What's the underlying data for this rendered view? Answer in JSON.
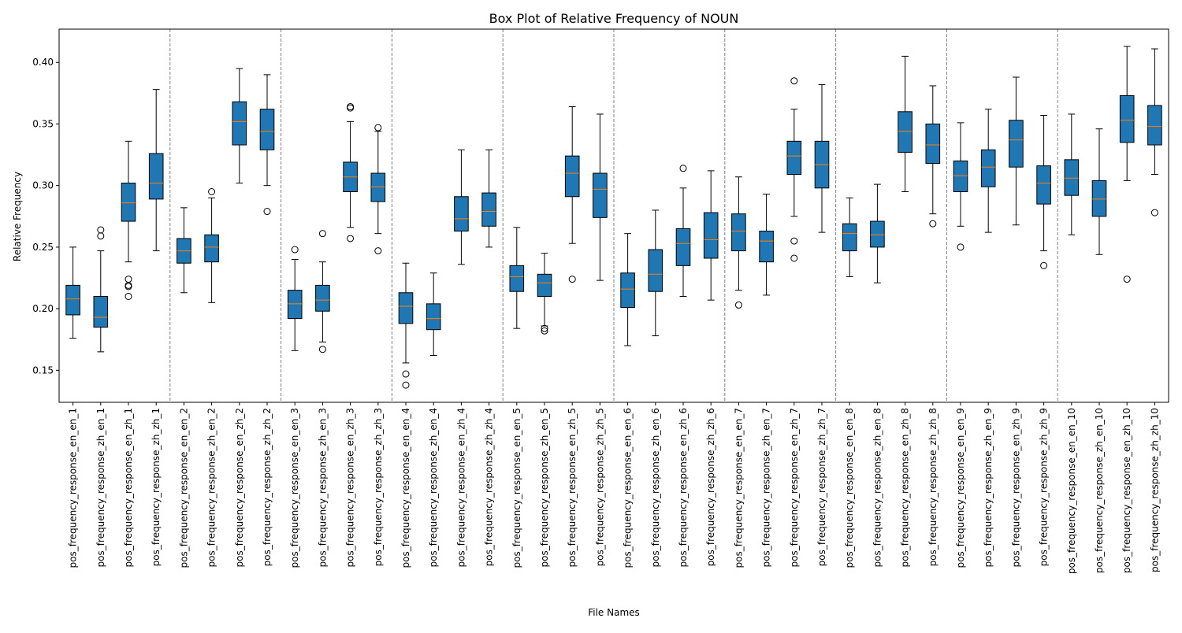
{
  "chart_data": {
    "type": "box",
    "title": "Box Plot of Relative Frequency of NOUN",
    "xlabel": "File Names",
    "ylabel": "Relative Frequency",
    "ylim": [
      0.124,
      0.427
    ],
    "yticks": [
      0.15,
      0.2,
      0.25,
      0.3,
      0.35,
      0.4
    ],
    "ytick_labels": [
      "0.15",
      "0.20",
      "0.25",
      "0.30",
      "0.35",
      "0.40"
    ],
    "grid": false,
    "group_separators": true,
    "colors": {
      "box_fill": "#1f77b4",
      "median": "#ff7f0e",
      "whisker": "#000000",
      "separator": "#808080"
    },
    "categories": [
      "pos_frequency_response_en_en_1",
      "pos_frequency_response_zh_en_1",
      "pos_frequency_response_en_zh_1",
      "pos_frequency_response_zh_zh_1",
      "pos_frequency_response_en_en_2",
      "pos_frequency_response_zh_en_2",
      "pos_frequency_response_en_zh_2",
      "pos_frequency_response_zh_zh_2",
      "pos_frequency_response_en_en_3",
      "pos_frequency_response_zh_en_3",
      "pos_frequency_response_en_zh_3",
      "pos_frequency_response_zh_zh_3",
      "pos_frequency_response_en_en_4",
      "pos_frequency_response_zh_en_4",
      "pos_frequency_response_en_zh_4",
      "pos_frequency_response_zh_zh_4",
      "pos_frequency_response_en_en_5",
      "pos_frequency_response_zh_en_5",
      "pos_frequency_response_en_zh_5",
      "pos_frequency_response_zh_zh_5",
      "pos_frequency_response_en_en_6",
      "pos_frequency_response_zh_en_6",
      "pos_frequency_response_en_zh_6",
      "pos_frequency_response_zh_zh_6",
      "pos_frequency_response_en_en_7",
      "pos_frequency_response_zh_en_7",
      "pos_frequency_response_en_zh_7",
      "pos_frequency_response_zh_zh_7",
      "pos_frequency_response_en_en_8",
      "pos_frequency_response_zh_en_8",
      "pos_frequency_response_en_zh_8",
      "pos_frequency_response_zh_zh_8",
      "pos_frequency_response_en_en_9",
      "pos_frequency_response_zh_en_9",
      "pos_frequency_response_en_zh_9",
      "pos_frequency_response_zh_zh_9",
      "pos_frequency_response_en_en_10",
      "pos_frequency_response_zh_en_10",
      "pos_frequency_response_en_zh_10",
      "pos_frequency_response_zh_zh_10"
    ],
    "boxes": [
      {
        "whislo": 0.176,
        "q1": 0.195,
        "med": 0.208,
        "q3": 0.219,
        "whishi": 0.25,
        "fliers": []
      },
      {
        "whislo": 0.165,
        "q1": 0.185,
        "med": 0.193,
        "q3": 0.21,
        "whishi": 0.247,
        "fliers": [
          0.259,
          0.264
        ]
      },
      {
        "whislo": 0.238,
        "q1": 0.271,
        "med": 0.286,
        "q3": 0.302,
        "whishi": 0.336,
        "fliers": [
          0.21,
          0.218,
          0.219,
          0.224
        ]
      },
      {
        "whislo": 0.247,
        "q1": 0.289,
        "med": 0.302,
        "q3": 0.326,
        "whishi": 0.378,
        "fliers": []
      },
      {
        "whislo": 0.213,
        "q1": 0.237,
        "med": 0.247,
        "q3": 0.257,
        "whishi": 0.282,
        "fliers": []
      },
      {
        "whislo": 0.205,
        "q1": 0.238,
        "med": 0.25,
        "q3": 0.26,
        "whishi": 0.29,
        "fliers": [
          0.295
        ]
      },
      {
        "whislo": 0.302,
        "q1": 0.333,
        "med": 0.352,
        "q3": 0.368,
        "whishi": 0.395,
        "fliers": []
      },
      {
        "whislo": 0.3,
        "q1": 0.329,
        "med": 0.344,
        "q3": 0.362,
        "whishi": 0.39,
        "fliers": [
          0.279
        ]
      },
      {
        "whislo": 0.166,
        "q1": 0.192,
        "med": 0.204,
        "q3": 0.215,
        "whishi": 0.24,
        "fliers": [
          0.248
        ]
      },
      {
        "whislo": 0.173,
        "q1": 0.198,
        "med": 0.207,
        "q3": 0.219,
        "whishi": 0.238,
        "fliers": [
          0.167,
          0.261
        ]
      },
      {
        "whislo": 0.266,
        "q1": 0.295,
        "med": 0.307,
        "q3": 0.319,
        "whishi": 0.352,
        "fliers": [
          0.257,
          0.363,
          0.364
        ]
      },
      {
        "whislo": 0.261,
        "q1": 0.287,
        "med": 0.299,
        "q3": 0.31,
        "whishi": 0.344,
        "fliers": [
          0.247,
          0.347
        ]
      },
      {
        "whislo": 0.156,
        "q1": 0.188,
        "med": 0.202,
        "q3": 0.213,
        "whishi": 0.237,
        "fliers": [
          0.138,
          0.147
        ]
      },
      {
        "whislo": 0.162,
        "q1": 0.183,
        "med": 0.192,
        "q3": 0.204,
        "whishi": 0.229,
        "fliers": []
      },
      {
        "whislo": 0.236,
        "q1": 0.263,
        "med": 0.273,
        "q3": 0.291,
        "whishi": 0.329,
        "fliers": []
      },
      {
        "whislo": 0.25,
        "q1": 0.267,
        "med": 0.279,
        "q3": 0.294,
        "whishi": 0.329,
        "fliers": []
      },
      {
        "whislo": 0.184,
        "q1": 0.214,
        "med": 0.226,
        "q3": 0.235,
        "whishi": 0.266,
        "fliers": []
      },
      {
        "whislo": 0.186,
        "q1": 0.21,
        "med": 0.221,
        "q3": 0.228,
        "whishi": 0.245,
        "fliers": [
          0.182,
          0.184
        ]
      },
      {
        "whislo": 0.253,
        "q1": 0.291,
        "med": 0.31,
        "q3": 0.324,
        "whishi": 0.364,
        "fliers": [
          0.224
        ]
      },
      {
        "whislo": 0.223,
        "q1": 0.274,
        "med": 0.297,
        "q3": 0.31,
        "whishi": 0.358,
        "fliers": []
      },
      {
        "whislo": 0.17,
        "q1": 0.201,
        "med": 0.216,
        "q3": 0.229,
        "whishi": 0.261,
        "fliers": []
      },
      {
        "whislo": 0.178,
        "q1": 0.214,
        "med": 0.228,
        "q3": 0.248,
        "whishi": 0.28,
        "fliers": []
      },
      {
        "whislo": 0.21,
        "q1": 0.235,
        "med": 0.253,
        "q3": 0.265,
        "whishi": 0.298,
        "fliers": [
          0.314
        ]
      },
      {
        "whislo": 0.207,
        "q1": 0.241,
        "med": 0.256,
        "q3": 0.278,
        "whishi": 0.312,
        "fliers": []
      },
      {
        "whislo": 0.215,
        "q1": 0.247,
        "med": 0.263,
        "q3": 0.277,
        "whishi": 0.307,
        "fliers": [
          0.203
        ]
      },
      {
        "whislo": 0.211,
        "q1": 0.238,
        "med": 0.255,
        "q3": 0.263,
        "whishi": 0.293,
        "fliers": []
      },
      {
        "whislo": 0.275,
        "q1": 0.309,
        "med": 0.324,
        "q3": 0.336,
        "whishi": 0.362,
        "fliers": [
          0.241,
          0.255,
          0.385
        ]
      },
      {
        "whislo": 0.262,
        "q1": 0.298,
        "med": 0.317,
        "q3": 0.336,
        "whishi": 0.382,
        "fliers": []
      },
      {
        "whislo": 0.226,
        "q1": 0.247,
        "med": 0.261,
        "q3": 0.269,
        "whishi": 0.29,
        "fliers": []
      },
      {
        "whislo": 0.221,
        "q1": 0.25,
        "med": 0.26,
        "q3": 0.271,
        "whishi": 0.301,
        "fliers": []
      },
      {
        "whislo": 0.295,
        "q1": 0.327,
        "med": 0.344,
        "q3": 0.36,
        "whishi": 0.405,
        "fliers": []
      },
      {
        "whislo": 0.277,
        "q1": 0.318,
        "med": 0.333,
        "q3": 0.35,
        "whishi": 0.381,
        "fliers": [
          0.269
        ]
      },
      {
        "whislo": 0.267,
        "q1": 0.295,
        "med": 0.308,
        "q3": 0.32,
        "whishi": 0.351,
        "fliers": [
          0.25
        ]
      },
      {
        "whislo": 0.262,
        "q1": 0.299,
        "med": 0.315,
        "q3": 0.329,
        "whishi": 0.362,
        "fliers": []
      },
      {
        "whislo": 0.268,
        "q1": 0.315,
        "med": 0.337,
        "q3": 0.353,
        "whishi": 0.388,
        "fliers": []
      },
      {
        "whislo": 0.247,
        "q1": 0.285,
        "med": 0.302,
        "q3": 0.316,
        "whishi": 0.357,
        "fliers": [
          0.235
        ]
      },
      {
        "whislo": 0.26,
        "q1": 0.292,
        "med": 0.306,
        "q3": 0.321,
        "whishi": 0.358,
        "fliers": []
      },
      {
        "whislo": 0.244,
        "q1": 0.275,
        "med": 0.289,
        "q3": 0.304,
        "whishi": 0.346,
        "fliers": []
      },
      {
        "whislo": 0.304,
        "q1": 0.335,
        "med": 0.353,
        "q3": 0.373,
        "whishi": 0.413,
        "fliers": [
          0.224
        ]
      },
      {
        "whislo": 0.309,
        "q1": 0.333,
        "med": 0.348,
        "q3": 0.365,
        "whishi": 0.411,
        "fliers": [
          0.278
        ]
      }
    ]
  }
}
